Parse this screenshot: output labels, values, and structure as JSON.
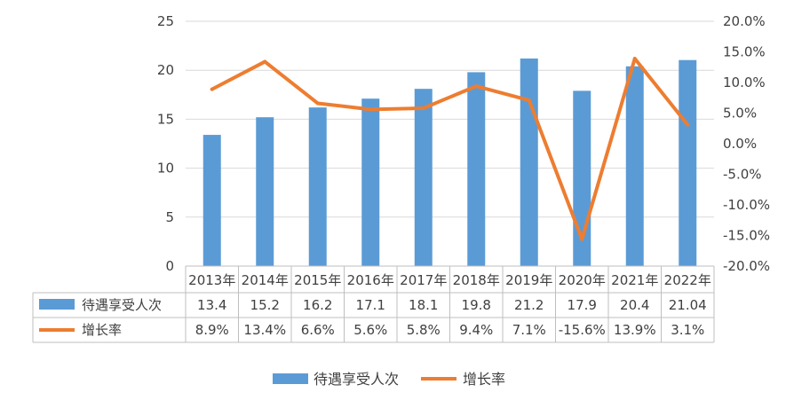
{
  "chart_data": {
    "type": "bar",
    "categories": [
      "2013年",
      "2014年",
      "2015年",
      "2016年",
      "2017年",
      "2018年",
      "2019年",
      "2020年",
      "2021年",
      "2022年"
    ],
    "series": [
      {
        "name": "待遇享受人次",
        "type": "bar",
        "axis": "left",
        "values": [
          13.4,
          15.2,
          16.2,
          17.1,
          18.1,
          19.8,
          21.2,
          17.9,
          20.4,
          21.04
        ],
        "labels": [
          "13.4",
          "15.2",
          "16.2",
          "17.1",
          "18.1",
          "19.8",
          "21.2",
          "17.9",
          "20.4",
          "21.04"
        ],
        "color": "#5B9BD5"
      },
      {
        "name": "增长率",
        "type": "line",
        "axis": "right",
        "values": [
          8.9,
          13.4,
          6.6,
          5.6,
          5.8,
          9.4,
          7.1,
          -15.6,
          13.9,
          3.1
        ],
        "labels": [
          "8.9%",
          "13.4%",
          "6.6%",
          "5.6%",
          "5.8%",
          "9.4%",
          "7.1%",
          "-15.6%",
          "13.9%",
          "3.1%"
        ],
        "color": "#ED7D31"
      }
    ],
    "y_left": {
      "ylim": [
        0,
        25
      ],
      "ticks": [
        "0",
        "5",
        "10",
        "15",
        "20",
        "25"
      ]
    },
    "y_right": {
      "ylim": [
        -20,
        20
      ],
      "ticks": [
        "-20.0%",
        "-15.0%",
        "-10.0%",
        "-5.0%",
        "0.0%",
        "5.0%",
        "10.0%",
        "15.0%",
        "20.0%"
      ]
    },
    "grid": true,
    "data_table": true,
    "legend": {
      "position": "bottom",
      "items": [
        "待遇享受人次",
        "增长率"
      ]
    }
  }
}
